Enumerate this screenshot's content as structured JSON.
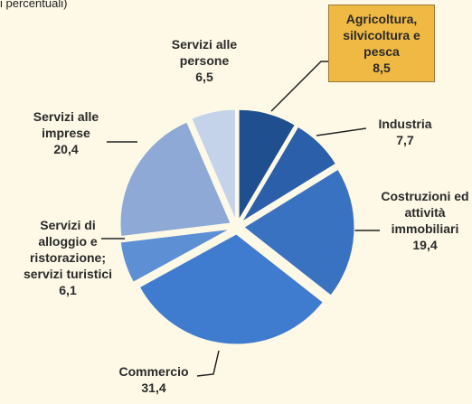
{
  "subtitle": "i percentuali)",
  "chart_data": {
    "type": "pie",
    "categories": [
      "Agricoltura, silvicoltura e pesca",
      "Industria",
      "Costruzioni ed attività immobiliari",
      "Commercio",
      "Servizi di alloggio e ristorazione; servizi turistici",
      "Servizi alle imprese",
      "Servizi alle persone"
    ],
    "values": [
      8.5,
      7.7,
      19.4,
      31.4,
      6.1,
      20.4,
      6.5
    ],
    "value_labels": [
      "8,5",
      "7,7",
      "19,4",
      "31,4",
      "6,1",
      "20,4",
      "6,5"
    ],
    "colors": [
      "#1f4f8f",
      "#2b5fa9",
      "#3a72c2",
      "#3f7ccf",
      "#5c8fd4",
      "#8ea9d6",
      "#c4d2ea"
    ]
  }
}
